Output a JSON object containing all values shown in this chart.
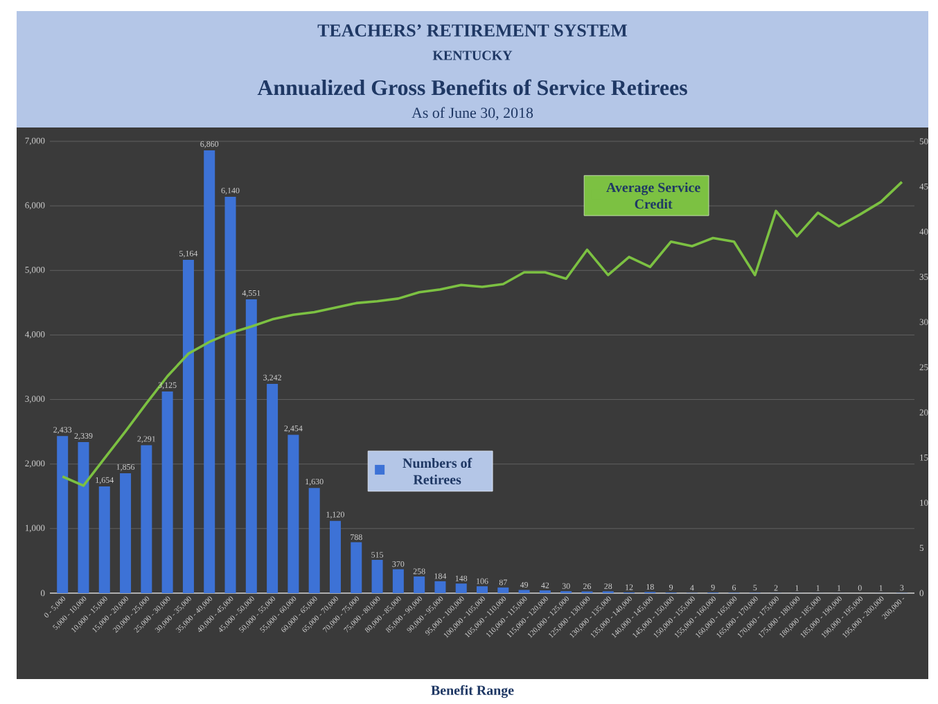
{
  "chart_data": {
    "type": "bar",
    "title": "Annualized Gross Benefits of Service Retirees",
    "subtitle": "As of June 30, 2018",
    "xlabel": "Benefit Range",
    "annotations": [
      "TEACHERS’ RETIREMENT SYSTEM",
      "KENTUCKY"
    ],
    "categories": [
      "0 - 5,000",
      "5,000 - 10,000",
      "10,000 - 15,000",
      "15,000 - 20,000",
      "20,000 - 25,000",
      "25,000 - 30,000",
      "30,000 - 35,000",
      "35,000 - 40,000",
      "40,000 - 45,000",
      "45,000 - 50,000",
      "50,000 - 55,000",
      "55,000 - 60,000",
      "60,000 - 65,000",
      "65,000 - 70,000",
      "70,000 - 75,000",
      "75,000 - 80,000",
      "80,000 - 85,000",
      "85,000 - 90,000",
      "90,000 - 95,000",
      "95,000 - 100,000",
      "100,000 - 105,000",
      "105,000 - 110,000",
      "110,000 - 115,000",
      "115,000 - 120,000",
      "120,000 - 125,000",
      "125,000 - 130,000",
      "130,000 - 135,000",
      "135,000 - 140,000",
      "140,000 - 145,000",
      "145,000 - 150,000",
      "150,000 - 155,000",
      "155,000 - 160,000",
      "160,000 - 165,000",
      "165,000 - 170,000",
      "170,000 - 175,000",
      "175,000 - 180,000",
      "180,000 - 185,000",
      "185,000 - 190,000",
      "190,000 - 195,000",
      "195,000 - 200,000",
      "200,000 -"
    ],
    "series": [
      {
        "name": "Numbers of Retirees",
        "color": "#3d72d6",
        "values": [
          2433,
          2339,
          1654,
          1856,
          2291,
          3125,
          5164,
          6860,
          6140,
          4551,
          3242,
          2454,
          1630,
          1120,
          788,
          515,
          370,
          258,
          184,
          148,
          106,
          87,
          49,
          42,
          30,
          26,
          28,
          12,
          18,
          9,
          4,
          9,
          6,
          5,
          2,
          1,
          1,
          1,
          0,
          1,
          3
        ],
        "value_labels": [
          "2,433",
          "2,339",
          "1,654",
          "1,856",
          "2,291",
          "3,125",
          "5,164",
          "6,860",
          "6,140",
          "4,551",
          "3,242",
          "2,454",
          "1,630",
          "1,120",
          "788",
          "515",
          "370",
          "258",
          "184",
          "148",
          "106",
          "87",
          "49",
          "42",
          "30",
          "26",
          "28",
          "12",
          "18",
          "9",
          "4",
          "9",
          "6",
          "5",
          "2",
          "1",
          "1",
          "1",
          "0",
          "1",
          "3"
        ]
      },
      {
        "name": "Average Service Credit",
        "type": "line",
        "axis": "y2",
        "color": "#7cc142",
        "values": [
          12.9,
          11.9,
          14.9,
          17.9,
          21.0,
          24.0,
          26.5,
          27.8,
          28.8,
          29.5,
          30.3,
          30.8,
          31.1,
          31.6,
          32.1,
          32.3,
          32.6,
          33.3,
          33.6,
          34.1,
          33.9,
          34.2,
          35.5,
          35.5,
          34.8,
          38.0,
          35.2,
          37.2,
          36.1,
          38.9,
          38.4,
          39.3,
          38.9,
          35.2,
          42.3,
          39.5,
          42.1,
          40.6,
          41.9,
          43.3,
          45.5
        ]
      }
    ],
    "ylim": [
      0,
      7000
    ],
    "yticks": [
      0,
      {
        "value": 1000,
        "label": "1,000"
      },
      {
        "value": 2000,
        "label": "2,000"
      },
      {
        "value": 3000,
        "label": "3,000"
      },
      {
        "value": 4000,
        "label": "4,000"
      },
      {
        "value": 5000,
        "label": "5,000"
      },
      {
        "value": 6000,
        "label": "6,000"
      },
      {
        "value": 7000,
        "label": "7,000"
      }
    ],
    "y2lim": [
      0,
      50
    ],
    "y2ticks": [
      0,
      5,
      10,
      15,
      20,
      25,
      30,
      35,
      40,
      45,
      50
    ],
    "grid": "y"
  }
}
